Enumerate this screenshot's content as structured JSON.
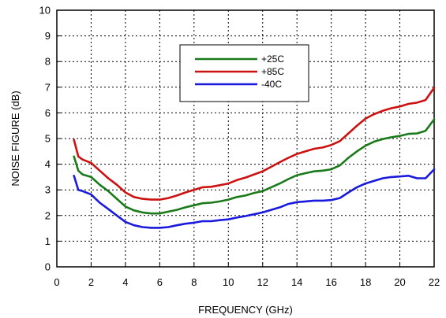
{
  "chart_data": {
    "type": "line",
    "title": "",
    "xlabel": "FREQUENCY (GHz)",
    "ylabel": "NOISE FIGURE (dB)",
    "xlim": [
      0,
      22
    ],
    "ylim": [
      0,
      10
    ],
    "xticks": [
      0,
      2,
      4,
      6,
      8,
      10,
      12,
      14,
      16,
      18,
      20,
      22
    ],
    "yticks": [
      0,
      1,
      2,
      3,
      4,
      5,
      6,
      7,
      8,
      9,
      10
    ],
    "grid": "dotted",
    "legend_position": "top-center",
    "series": [
      {
        "name": "+25C",
        "color": "#1a7a1a",
        "x": [
          1,
          1.25,
          1.5,
          2,
          2.5,
          3,
          3.5,
          4,
          4.5,
          5,
          5.5,
          6,
          6.5,
          7,
          7.5,
          8,
          8.5,
          9,
          9.5,
          10,
          10.5,
          11,
          11.5,
          12,
          12.5,
          13,
          13.5,
          14,
          14.5,
          15,
          15.5,
          16,
          16.5,
          17,
          17.5,
          18,
          18.5,
          19,
          19.5,
          20,
          20.5,
          21,
          21.5,
          22
        ],
        "y": [
          4.3,
          3.75,
          3.6,
          3.5,
          3.2,
          2.95,
          2.65,
          2.35,
          2.2,
          2.12,
          2.08,
          2.08,
          2.15,
          2.22,
          2.32,
          2.4,
          2.48,
          2.5,
          2.55,
          2.62,
          2.72,
          2.78,
          2.88,
          2.95,
          3.1,
          3.25,
          3.42,
          3.57,
          3.65,
          3.72,
          3.75,
          3.8,
          3.95,
          4.25,
          4.5,
          4.72,
          4.88,
          4.98,
          5.05,
          5.1,
          5.18,
          5.2,
          5.3,
          5.75
        ]
      },
      {
        "name": "+85C",
        "color": "#cc1111",
        "x": [
          1,
          1.25,
          1.5,
          2,
          2.5,
          3,
          3.5,
          4,
          4.5,
          5,
          5.5,
          6,
          6.5,
          7,
          7.5,
          8,
          8.5,
          9,
          9.5,
          10,
          10.5,
          11,
          11.5,
          12,
          12.5,
          13,
          13.5,
          14,
          14.5,
          15,
          15.5,
          16,
          16.5,
          17,
          17.5,
          18,
          18.5,
          19,
          19.5,
          20,
          20.5,
          21,
          21.5,
          22
        ],
        "y": [
          4.95,
          4.3,
          4.18,
          4.05,
          3.75,
          3.45,
          3.2,
          2.9,
          2.72,
          2.65,
          2.62,
          2.62,
          2.68,
          2.78,
          2.9,
          3.0,
          3.1,
          3.12,
          3.18,
          3.25,
          3.38,
          3.48,
          3.6,
          3.72,
          3.9,
          4.08,
          4.25,
          4.4,
          4.5,
          4.6,
          4.65,
          4.75,
          4.9,
          5.2,
          5.5,
          5.78,
          5.95,
          6.08,
          6.18,
          6.25,
          6.35,
          6.4,
          6.5,
          6.98
        ]
      },
      {
        "name": "-40C",
        "color": "#1a1adc",
        "x": [
          1,
          1.25,
          1.5,
          2,
          2.5,
          3,
          3.5,
          4,
          4.5,
          5,
          5.5,
          6,
          6.5,
          7,
          7.5,
          8,
          8.5,
          9,
          9.5,
          10,
          10.5,
          11,
          11.5,
          12,
          12.5,
          13,
          13.5,
          14,
          14.5,
          15,
          15.5,
          16,
          16.5,
          17,
          17.5,
          18,
          18.5,
          19,
          19.5,
          20,
          20.5,
          21,
          21.5,
          22
        ],
        "y": [
          3.55,
          3.0,
          2.95,
          2.82,
          2.5,
          2.25,
          2.0,
          1.75,
          1.62,
          1.55,
          1.52,
          1.52,
          1.55,
          1.62,
          1.68,
          1.72,
          1.78,
          1.78,
          1.82,
          1.85,
          1.92,
          1.98,
          2.05,
          2.12,
          2.22,
          2.32,
          2.45,
          2.52,
          2.55,
          2.58,
          2.58,
          2.6,
          2.68,
          2.9,
          3.1,
          3.25,
          3.35,
          3.45,
          3.5,
          3.52,
          3.55,
          3.45,
          3.45,
          3.8
        ]
      }
    ]
  }
}
